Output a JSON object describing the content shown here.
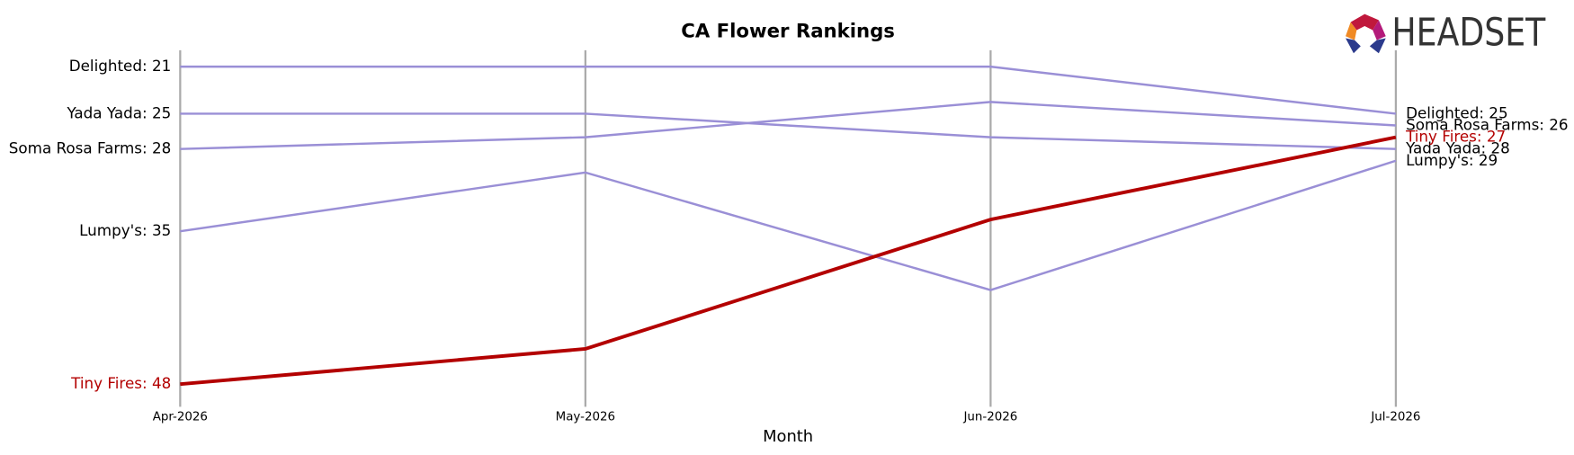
{
  "chart_data": {
    "type": "bump",
    "title": "CA Flower Rankings",
    "x_label": "Month",
    "logo": "HEADSET",
    "categories": [
      "Apr-2026",
      "May-2026",
      "Jun-2026",
      "Jul-2026"
    ],
    "ylim": [
      19.6,
      49.5
    ],
    "invert_y": true,
    "grid": true,
    "series": [
      {
        "name": "Delighted",
        "color": "#9a8fd6",
        "values": [
          21,
          21,
          21,
          25
        ],
        "value_labels": [
          "Delighted: 21",
          null,
          null,
          "Delighted: 25"
        ]
      },
      {
        "name": "Yada Yada",
        "color": "#9a8fd6",
        "values": [
          25,
          25,
          27,
          28
        ],
        "value_labels": [
          "Yada Yada: 25",
          null,
          null,
          "Yada Yada: 28"
        ]
      },
      {
        "name": "Soma Rosa Farms",
        "color": "#9a8fd6",
        "values": [
          28,
          27,
          24,
          26
        ],
        "value_labels": [
          "Soma Rosa Farms: 28",
          null,
          null,
          "Soma Rosa Farms: 26"
        ]
      },
      {
        "name": "Lumpy's",
        "color": "#9a8fd6",
        "values": [
          35,
          30,
          40,
          29
        ],
        "value_labels": [
          "Lumpy's: 35",
          null,
          null,
          "Lumpy's: 29"
        ]
      },
      {
        "name": "Tiny Fires",
        "color": "#b30000",
        "highlight": true,
        "values": [
          48,
          45,
          34,
          27
        ],
        "value_labels": [
          "Tiny Fires: 48",
          null,
          null,
          "Tiny Fires: 27"
        ]
      }
    ]
  }
}
